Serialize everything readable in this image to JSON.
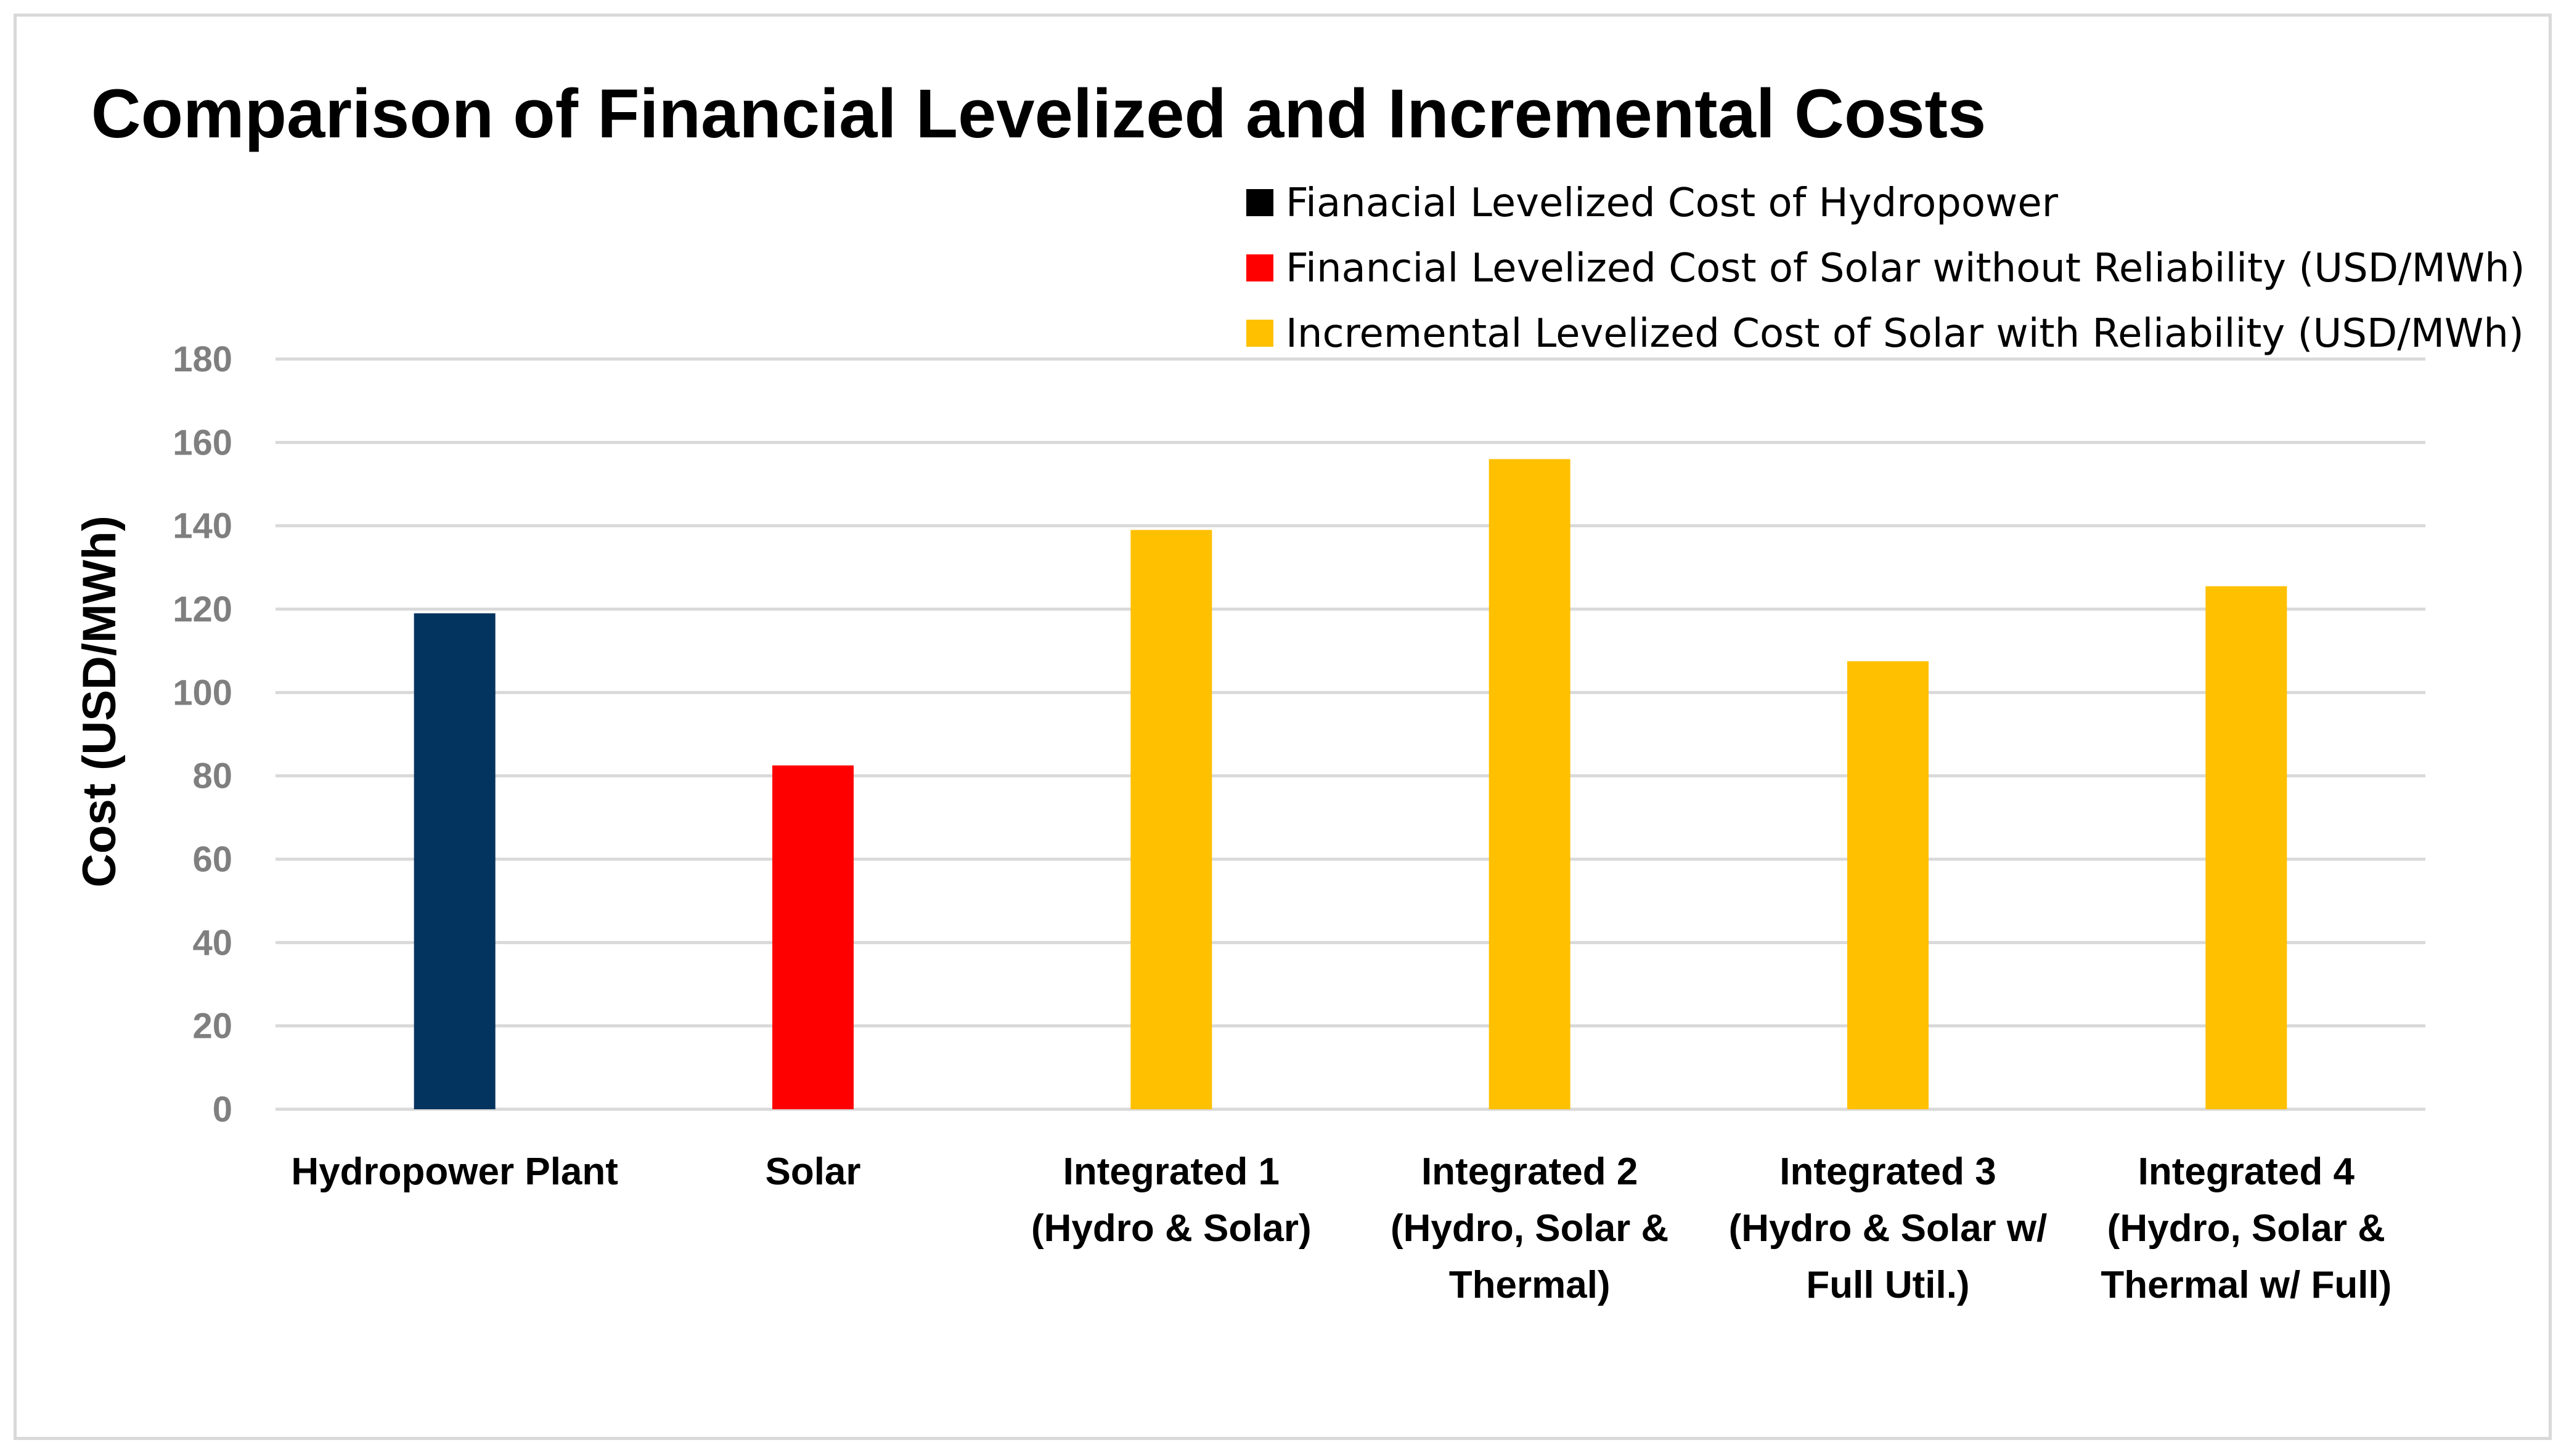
{
  "chart_data": {
    "type": "bar",
    "title": "Comparison of Financial Levelized and Incremental Costs",
    "xlabel": "",
    "ylabel": "Cost (USD/MWh)",
    "ylim": [
      0,
      180
    ],
    "ytick_step": 20,
    "ytick_labels": [
      "0",
      "20",
      "40",
      "60",
      "80",
      "100",
      "120",
      "140",
      "160",
      "180"
    ],
    "grid": true,
    "legend_position": "top-right",
    "categories": [
      [
        "Hydropower Plant"
      ],
      [
        "Solar"
      ],
      [
        "Integrated 1",
        "(Hydro & Solar)"
      ],
      [
        "Integrated 2",
        "(Hydro, Solar &",
        "Thermal)"
      ],
      [
        "Integrated 3",
        "(Hydro & Solar w/",
        "Full Util.)"
      ],
      [
        "Integrated 4",
        "(Hydro, Solar &",
        "Thermal w/ Full)"
      ]
    ],
    "series": [
      {
        "name": "Fianacial Levelized Cost of Hydropower",
        "color": "#03335f",
        "legend_swatch_color": "#000000",
        "values": [
          119,
          null,
          null,
          null,
          null,
          null
        ]
      },
      {
        "name": "Financial Levelized Cost of Solar without Reliability (USD/MWh)",
        "color": "#ff0000",
        "legend_swatch_color": "#ff0000",
        "values": [
          null,
          82.5,
          null,
          null,
          null,
          null
        ]
      },
      {
        "name": "Incremental Levelized Cost of Solar with Reliability (USD/MWh)",
        "color": "#ffc000",
        "legend_swatch_color": "#ffc000",
        "values": [
          null,
          null,
          139,
          156,
          107.5,
          125.5
        ]
      }
    ]
  }
}
